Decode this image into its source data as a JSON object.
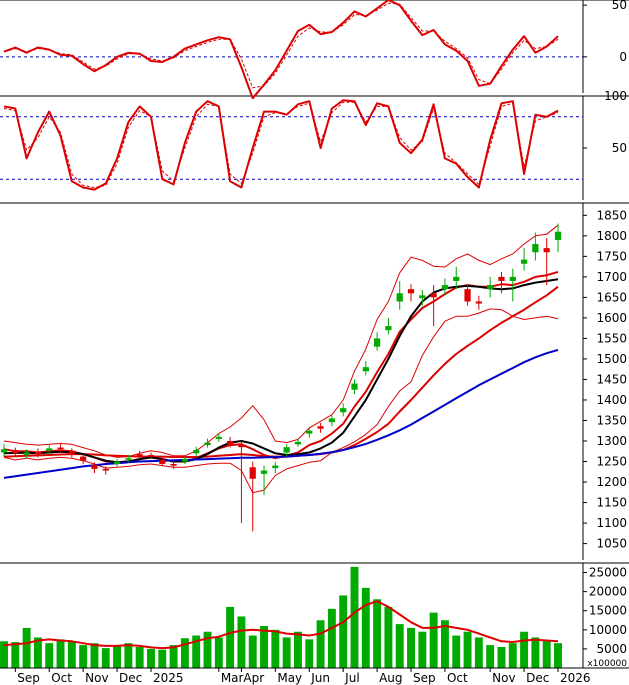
{
  "chart_data": [
    {
      "type": "line",
      "panel": "macd-oscillator",
      "ylim": [
        -35,
        55
      ],
      "yticks": [
        0,
        50
      ],
      "ytick_labels": [
        "0",
        "50"
      ],
      "reference_lines": [
        0
      ],
      "series": [
        {
          "values": [
            5,
            9,
            4,
            9,
            7,
            2,
            1,
            -7,
            -14,
            -8,
            0,
            4,
            3,
            -4,
            -5,
            0,
            8,
            12,
            16,
            19,
            17,
            -10,
            -40,
            -27,
            -13,
            6,
            25,
            31,
            22,
            24,
            33,
            44,
            39,
            47,
            55,
            50,
            35,
            21,
            26,
            12,
            6,
            -4,
            -28,
            -26,
            -9,
            7,
            20,
            4,
            10,
            20
          ],
          "color": "#dd0000",
          "dash": "none"
        },
        {
          "values": [
            5,
            8,
            5,
            8,
            7,
            3,
            2,
            -5,
            -12,
            -9,
            -2,
            3,
            3,
            -2,
            -4,
            -1,
            6,
            10,
            14,
            17,
            17,
            -2,
            -30,
            -28,
            -16,
            2,
            20,
            28,
            24,
            24,
            31,
            41,
            40,
            45,
            52,
            51,
            38,
            25,
            25,
            15,
            8,
            -1,
            -22,
            -26,
            -12,
            4,
            16,
            8,
            10,
            17
          ],
          "color": "#dd0000",
          "dash": "dashed"
        }
      ]
    },
    {
      "type": "line",
      "panel": "stochastic",
      "ylim": [
        0,
        100
      ],
      "yticks": [
        50,
        100
      ],
      "ytick_labels": [
        "50",
        "100"
      ],
      "reference_lines": [
        20,
        80
      ],
      "series": [
        {
          "values": [
            90,
            88,
            40,
            65,
            85,
            62,
            18,
            12,
            10,
            16,
            40,
            75,
            90,
            80,
            20,
            15,
            55,
            85,
            95,
            90,
            18,
            12,
            50,
            85,
            85,
            82,
            92,
            95,
            50,
            88,
            96,
            95,
            72,
            93,
            90,
            55,
            45,
            58,
            92,
            40,
            35,
            22,
            12,
            58,
            93,
            95,
            25,
            82,
            80,
            86
          ],
          "color": "#dd0000",
          "dash": "none"
        },
        {
          "values": [
            88,
            86,
            48,
            60,
            80,
            65,
            25,
            14,
            12,
            14,
            35,
            70,
            86,
            80,
            28,
            18,
            50,
            80,
            92,
            90,
            25,
            16,
            45,
            80,
            84,
            83,
            90,
            93,
            56,
            84,
            94,
            94,
            75,
            90,
            90,
            60,
            48,
            56,
            88,
            45,
            36,
            25,
            15,
            52,
            90,
            93,
            32,
            76,
            80,
            84
          ],
          "color": "#dd0000",
          "dash": "dashed"
        }
      ]
    },
    {
      "type": "candlestick",
      "panel": "price",
      "ylim": [
        1010,
        1880
      ],
      "yticks": [
        1050,
        1100,
        1150,
        1200,
        1250,
        1300,
        1350,
        1400,
        1450,
        1500,
        1550,
        1600,
        1650,
        1700,
        1750,
        1800,
        1850
      ],
      "ytick_labels": [
        "1050",
        "1100",
        "1150",
        "1200",
        "1250",
        "1300",
        "1350",
        "1400",
        "1450",
        "1500",
        "1550",
        "1600",
        "1650",
        "1700",
        "1750",
        "1800",
        "1850"
      ],
      "close": [
        1280,
        1270,
        1272,
        1268,
        1282,
        1280,
        1270,
        1252,
        1232,
        1228,
        1250,
        1258,
        1264,
        1262,
        1244,
        1240,
        1256,
        1278,
        1296,
        1310,
        1292,
        1285,
        1208,
        1228,
        1240,
        1285,
        1298,
        1325,
        1330,
        1355,
        1380,
        1440,
        1480,
        1550,
        1580,
        1660,
        1660,
        1655,
        1650,
        1680,
        1700,
        1640,
        1635,
        1680,
        1690,
        1700,
        1742,
        1780,
        1760,
        1810
      ],
      "open": [
        1272,
        1278,
        1266,
        1274,
        1276,
        1284,
        1276,
        1262,
        1242,
        1232,
        1244,
        1254,
        1268,
        1266,
        1254,
        1244,
        1250,
        1270,
        1290,
        1305,
        1300,
        1290,
        1236,
        1220,
        1234,
        1272,
        1292,
        1318,
        1336,
        1346,
        1370,
        1425,
        1470,
        1530,
        1570,
        1640,
        1670,
        1648,
        1660,
        1670,
        1690,
        1670,
        1640,
        1670,
        1700,
        1690,
        1732,
        1760,
        1770,
        1790
      ],
      "high": [
        1292,
        1284,
        1280,
        1282,
        1292,
        1292,
        1282,
        1268,
        1248,
        1238,
        1256,
        1266,
        1276,
        1272,
        1262,
        1252,
        1262,
        1286,
        1306,
        1318,
        1310,
        1300,
        1250,
        1240,
        1248,
        1292,
        1306,
        1334,
        1344,
        1362,
        1392,
        1450,
        1495,
        1565,
        1600,
        1690,
        1682,
        1668,
        1680,
        1696,
        1725,
        1680,
        1654,
        1700,
        1712,
        1720,
        1770,
        1808,
        1795,
        1830
      ],
      "low": [
        1262,
        1262,
        1258,
        1260,
        1268,
        1272,
        1260,
        1244,
        1222,
        1218,
        1238,
        1248,
        1256,
        1256,
        1238,
        1232,
        1244,
        1264,
        1284,
        1298,
        1284,
        1100,
        1080,
        1168,
        1222,
        1262,
        1286,
        1308,
        1320,
        1336,
        1360,
        1414,
        1460,
        1520,
        1560,
        1620,
        1640,
        1630,
        1580,
        1655,
        1670,
        1630,
        1620,
        1650,
        1660,
        1640,
        1715,
        1740,
        1680,
        1760
      ],
      "overlays": [
        {
          "values": [
            1280,
            1275,
            1275,
            1272,
            1275,
            1277,
            1275,
            1268,
            1260,
            1250,
            1248,
            1250,
            1256,
            1260,
            1256,
            1250,
            1250,
            1258,
            1270,
            1282,
            1290,
            1292,
            1280,
            1266,
            1258,
            1264,
            1272,
            1290,
            1300,
            1318,
            1342,
            1384,
            1420,
            1468,
            1512,
            1566,
            1596,
            1624,
            1640,
            1658,
            1674,
            1680,
            1676,
            1676,
            1682,
            1680,
            1688,
            1700,
            1704,
            1712
          ],
          "color": "#dd0000"
        },
        {
          "values": [
            1300,
            1296,
            1292,
            1290,
            1292,
            1294,
            1292,
            1284,
            1276,
            1266,
            1260,
            1262,
            1270,
            1276,
            1272,
            1264,
            1264,
            1276,
            1296,
            1318,
            1334,
            1356,
            1386,
            1352,
            1300,
            1296,
            1304,
            1332,
            1348,
            1364,
            1400,
            1470,
            1524,
            1596,
            1640,
            1710,
            1748,
            1740,
            1726,
            1724,
            1744,
            1756,
            1740,
            1730,
            1744,
            1756,
            1780,
            1800,
            1804,
            1826
          ],
          "color": "#dd0000"
        },
        {
          "values": [
            1260,
            1254,
            1258,
            1254,
            1258,
            1260,
            1258,
            1252,
            1244,
            1234,
            1236,
            1238,
            1242,
            1244,
            1240,
            1236,
            1236,
            1240,
            1244,
            1246,
            1246,
            1228,
            1174,
            1180,
            1216,
            1232,
            1240,
            1248,
            1252,
            1272,
            1284,
            1298,
            1316,
            1340,
            1384,
            1422,
            1444,
            1508,
            1554,
            1592,
            1604,
            1604,
            1612,
            1622,
            1620,
            1604,
            1596,
            1600,
            1604,
            1598
          ],
          "color": "#dd0000"
        },
        {
          "values": [
            1262,
            1263,
            1264,
            1265,
            1266,
            1267,
            1268,
            1268,
            1267,
            1265,
            1264,
            1263,
            1262,
            1262,
            1262,
            1261,
            1261,
            1261,
            1262,
            1264,
            1266,
            1268,
            1266,
            1263,
            1262,
            1262,
            1264,
            1266,
            1268,
            1272,
            1278,
            1290,
            1305,
            1322,
            1342,
            1372,
            1400,
            1430,
            1460,
            1488,
            1512,
            1532,
            1550,
            1570,
            1588,
            1604,
            1620,
            1638,
            1655,
            1676
          ],
          "color": "#dd0000"
        },
        {
          "values": [
            1270,
            1271,
            1271,
            1270,
            1272,
            1274,
            1273,
            1268,
            1260,
            1252,
            1248,
            1250,
            1256,
            1260,
            1256,
            1250,
            1250,
            1256,
            1268,
            1284,
            1296,
            1300,
            1294,
            1282,
            1270,
            1266,
            1268,
            1272,
            1282,
            1296,
            1320,
            1360,
            1400,
            1450,
            1500,
            1556,
            1604,
            1640,
            1662,
            1672,
            1676,
            1678,
            1676,
            1672,
            1670,
            1672,
            1680,
            1686,
            1690,
            1694
          ],
          "color": "#000000"
        },
        {
          "values": [
            1210,
            1214,
            1218,
            1222,
            1226,
            1230,
            1234,
            1238,
            1241,
            1244,
            1246,
            1248,
            1250,
            1251,
            1252,
            1253,
            1254,
            1255,
            1256,
            1257,
            1258,
            1259,
            1259,
            1260,
            1261,
            1262,
            1264,
            1266,
            1269,
            1273,
            1278,
            1285,
            1293,
            1303,
            1314,
            1326,
            1340,
            1356,
            1372,
            1388,
            1404,
            1420,
            1436,
            1450,
            1464,
            1478,
            1492,
            1504,
            1514,
            1522
          ],
          "color": "#0000cc"
        }
      ]
    },
    {
      "type": "bar",
      "panel": "volume",
      "ylim": [
        0,
        27500
      ],
      "yticks": [
        5000,
        10000,
        15000,
        20000,
        25000
      ],
      "ytick_labels": [
        "5000",
        "10000",
        "15000",
        "20000",
        "25000"
      ],
      "unit_label": "x100000",
      "values": [
        7000,
        6800,
        10500,
        8000,
        6500,
        7500,
        7000,
        6000,
        6500,
        5200,
        6000,
        6500,
        5500,
        5000,
        4800,
        6000,
        7800,
        8500,
        9500,
        8000,
        16000,
        13500,
        8500,
        11000,
        10000,
        8000,
        9500,
        7500,
        12500,
        15500,
        19000,
        26500,
        21000,
        18000,
        16000,
        11500,
        10500,
        9500,
        14500,
        12500,
        8500,
        9500,
        8000,
        6000,
        5500,
        6500,
        9500,
        8000,
        7000,
        6500
      ],
      "overlays": [
        {
          "values": [
            6000,
            6200,
            6500,
            7200,
            7500,
            7200,
            7000,
            6500,
            6000,
            5800,
            5800,
            6000,
            5800,
            5400,
            5200,
            5400,
            6200,
            7000,
            7800,
            8200,
            9200,
            9800,
            10000,
            9800,
            9600,
            9000,
            8800,
            8500,
            9000,
            10500,
            12000,
            14500,
            16500,
            17500,
            16000,
            14000,
            12000,
            10500,
            10500,
            11000,
            10500,
            10000,
            9000,
            8000,
            7000,
            6800,
            7200,
            7400,
            7200,
            7000
          ],
          "color": "#dd0000"
        }
      ]
    }
  ],
  "x_axis": {
    "labels": [
      "Sep",
      "Oct",
      "Nov",
      "Dec",
      "2025",
      "Mar",
      "Apr",
      "May",
      "Jun",
      "Jul",
      "Aug",
      "Sep",
      "Oct",
      "Nov",
      "Dec",
      "2026"
    ],
    "label_index": [
      1,
      4,
      7,
      10,
      13,
      19,
      21,
      24,
      27,
      30,
      33,
      36,
      39,
      43,
      46,
      49
    ]
  },
  "colors": {
    "up": "#00aa00",
    "down": "#dd0000",
    "reference": "#0000cc",
    "volume": "#00aa00",
    "axis": "#000000"
  }
}
